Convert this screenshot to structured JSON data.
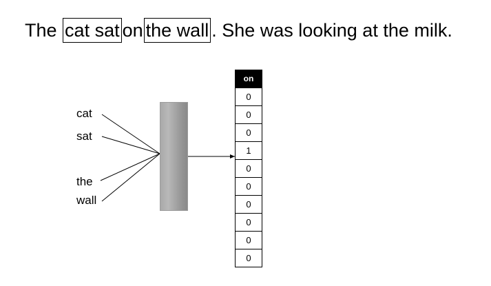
{
  "sentence": {
    "pre": "The",
    "context1": "cat sat",
    "target": "on",
    "context2": "the wall",
    "post": ". She was looking at the milk."
  },
  "inputs": [
    "cat",
    "sat",
    "the",
    "wall"
  ],
  "output": {
    "header": "on",
    "values": [
      "0",
      "0",
      "0",
      "1",
      "0",
      "0",
      "0",
      "0",
      "0",
      "0"
    ]
  },
  "colors": {
    "header_bg": "#000000",
    "hidden_layer": "#a0a0a0"
  }
}
